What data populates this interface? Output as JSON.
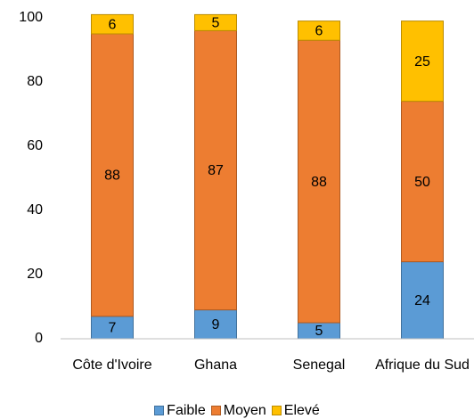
{
  "chart_data": {
    "type": "stacked_bar",
    "categories": [
      "Côte d'Ivoire",
      "Ghana",
      "Senegal",
      "Afrique du Sud"
    ],
    "series": [
      {
        "name": "Faible",
        "color": "#5b9bd5",
        "values": [
          7,
          9,
          5,
          24
        ]
      },
      {
        "name": "Moyen",
        "color": "#ed7d31",
        "values": [
          88,
          87,
          88,
          50
        ]
      },
      {
        "name": "Elevé",
        "color": "#ffc000",
        "values": [
          6,
          5,
          6,
          25
        ]
      }
    ],
    "ylim": [
      0,
      100
    ],
    "yticks": [
      0,
      20,
      40,
      60,
      80,
      100
    ],
    "grid": false,
    "legend": "bottom"
  }
}
